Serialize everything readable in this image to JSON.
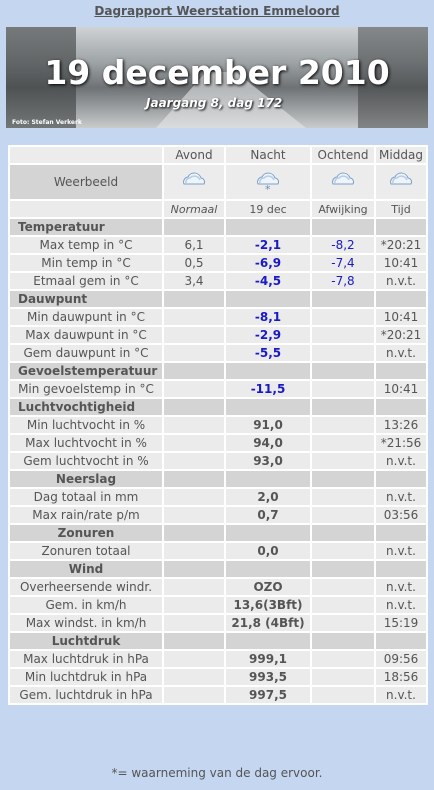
{
  "header": {
    "title": "Dagrapport Weerstation Emmeloord",
    "date": "19 december 2010",
    "subtitle": "Jaargang 8, dag 172",
    "photo_credit": "Foto: Stefan Verkerk"
  },
  "table": {
    "columns": [
      "Avond",
      "Nacht",
      "Ochtend",
      "Middag"
    ],
    "weather_label": "Weerbeeld",
    "subheader": [
      "Normaal",
      "19 dec",
      "Afwijking",
      "Tijd"
    ],
    "sections": [
      {
        "title": "Temperatuur",
        "rows": [
          [
            "Max temp in °C",
            "6,1",
            "-2,1",
            "-8,2",
            "*20:21"
          ],
          [
            "Min temp in °C",
            "0,5",
            "-6,9",
            "-7,4",
            "10:41"
          ],
          [
            "Etmaal gem in °C",
            "3,4",
            "-4,5",
            "-7,8",
            "n.v.t."
          ]
        ]
      },
      {
        "title": "Dauwpunt",
        "rows": [
          [
            "Min dauwpunt in °C",
            null,
            "-8,1",
            null,
            "10:41"
          ],
          [
            "Max dauwpunt in °C",
            null,
            "-2,9",
            null,
            "*20:21"
          ],
          [
            "Gem dauwpunt in °C",
            null,
            "-5,5",
            null,
            "n.v.t."
          ]
        ]
      },
      {
        "title": "Gevoelstemperatuur",
        "rows": [
          [
            "Min gevoelstemp in °C",
            null,
            "-11,5",
            null,
            "10:41"
          ]
        ]
      },
      {
        "title": "Luchtvochtigheid",
        "rows": [
          [
            "Min luchtvocht in %",
            null,
            "91,0",
            null,
            "13:26"
          ],
          [
            "Max luchtvocht in %",
            null,
            "94,0",
            null,
            "*21:56"
          ],
          [
            "Gem luchtvocht in %",
            null,
            "93,0",
            null,
            "n.v.t."
          ]
        ]
      },
      {
        "title": "Neerslag",
        "rows": [
          [
            "Dag totaal in mm",
            null,
            "2,0",
            null,
            "n.v.t."
          ],
          [
            "Max rain/rate p/m",
            null,
            "0,7",
            null,
            "03:56"
          ]
        ]
      },
      {
        "title": "Zonuren",
        "rows": [
          [
            "Zonuren totaal",
            null,
            "0,0",
            null,
            "n.v.t."
          ]
        ]
      },
      {
        "title": "Wind",
        "rows": [
          [
            "Overheersende windr.",
            null,
            "OZO",
            null,
            "n.v.t."
          ],
          [
            "Gem. in km/h",
            null,
            "13,6(3Bft)",
            null,
            "n.v.t."
          ],
          [
            "Max windst. in km/h",
            null,
            "21,8 (4Bft)",
            null,
            "15:19"
          ]
        ]
      },
      {
        "title": "Luchtdruk",
        "rows": [
          [
            "Max luchtdruk in hPa",
            null,
            "999,1",
            null,
            "09:56"
          ],
          [
            "Min luchtdruk in hPa",
            null,
            "993,5",
            null,
            "18:56"
          ],
          [
            "Gem. luchtdruk in hPa",
            null,
            "997,5",
            null,
            "n.v.t."
          ]
        ]
      }
    ]
  },
  "footer": "*= waarneming van de dag ervoor."
}
